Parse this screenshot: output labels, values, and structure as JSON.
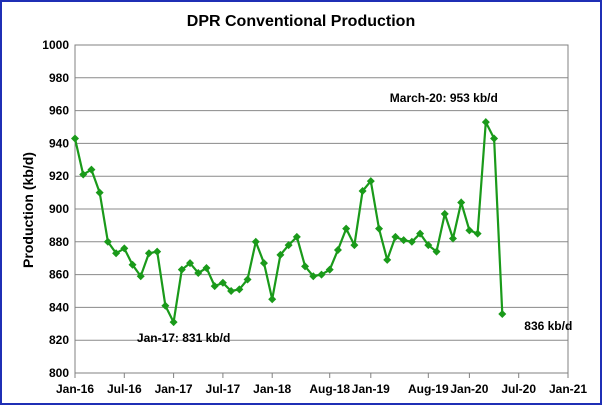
{
  "chart_data": {
    "type": "line",
    "title": "DPR Conventional Production",
    "xlabel": "",
    "ylabel": "Production (kb/d)",
    "ylim": [
      800,
      1000
    ],
    "yticks": [
      800,
      820,
      840,
      860,
      880,
      900,
      920,
      940,
      960,
      980,
      1000
    ],
    "xlim": [
      "2016-01",
      "2021-01"
    ],
    "xticks": [
      {
        "date": "2016-01",
        "label": "Jan-16"
      },
      {
        "date": "2016-07",
        "label": "Jul-16"
      },
      {
        "date": "2017-01",
        "label": "Jan-17"
      },
      {
        "date": "2017-07",
        "label": "Jul-17"
      },
      {
        "date": "2018-01",
        "label": "Jan-18"
      },
      {
        "date": "2018-08",
        "label": "Aug-18"
      },
      {
        "date": "2019-01",
        "label": "Jan-19"
      },
      {
        "date": "2019-08",
        "label": "Aug-19"
      },
      {
        "date": "2020-01",
        "label": "Jan-20"
      },
      {
        "date": "2020-07",
        "label": "Jul-20"
      },
      {
        "date": "2021-01",
        "label": "Jan-21"
      }
    ],
    "grid": true,
    "series_color": "#1a9a1a",
    "x": [
      "2016-01",
      "2016-02",
      "2016-03",
      "2016-04",
      "2016-05",
      "2016-06",
      "2016-07",
      "2016-08",
      "2016-09",
      "2016-10",
      "2016-11",
      "2016-12",
      "2017-01",
      "2017-02",
      "2017-03",
      "2017-04",
      "2017-05",
      "2017-06",
      "2017-07",
      "2017-08",
      "2017-09",
      "2017-10",
      "2017-11",
      "2017-12",
      "2018-01",
      "2018-02",
      "2018-03",
      "2018-04",
      "2018-05",
      "2018-06",
      "2018-07",
      "2018-08",
      "2018-09",
      "2018-10",
      "2018-11",
      "2018-12",
      "2019-01",
      "2019-02",
      "2019-03",
      "2019-04",
      "2019-05",
      "2019-06",
      "2019-07",
      "2019-08",
      "2019-09",
      "2019-10",
      "2019-11",
      "2019-12",
      "2020-01",
      "2020-02",
      "2020-03",
      "2020-04",
      "2020-05"
    ],
    "values": [
      943,
      921,
      924,
      910,
      880,
      873,
      876,
      866,
      859,
      873,
      874,
      841,
      831,
      863,
      867,
      861,
      864,
      853,
      855,
      850,
      851,
      857,
      880,
      867,
      845,
      872,
      878,
      883,
      865,
      859,
      860,
      863,
      875,
      888,
      878,
      911,
      917,
      888,
      869,
      883,
      881,
      880,
      885,
      878,
      874,
      897,
      882,
      904,
      887,
      885,
      953,
      943,
      836
    ],
    "annotations": [
      {
        "text": "March-20: 953 kb/d",
        "x": "2020-03",
        "y": 953
      },
      {
        "text": "Jan-17: 831 kb/d",
        "x": "2017-01",
        "y": 831
      },
      {
        "text": "836 kb/d",
        "x": "2020-05",
        "y": 836
      }
    ]
  }
}
